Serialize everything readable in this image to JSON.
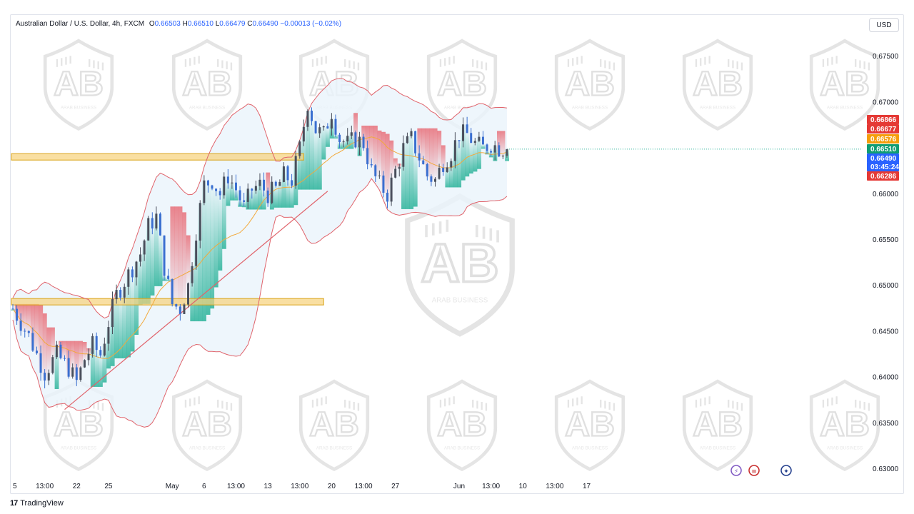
{
  "legend": {
    "symbol": "Australian Dollar / U.S. Dollar, 4h, FXCM",
    "open_label": "O",
    "open": "0.66503",
    "high_label": "H",
    "high": "0.66510",
    "low_label": "L",
    "low": "0.66479",
    "close_label": "C",
    "close": "0.66490",
    "change": "−0.00013 (−0.02%)"
  },
  "currency": "USD",
  "brand": "TradingView",
  "watermark_text": "ARAB BUSINESS",
  "colors": {
    "candle_up": "#4a4f5c",
    "candle_down": "#3a6fd0",
    "bollinger": "#e0636b",
    "ma": "#f2a93b",
    "trendline": "#e0636b",
    "zone_fill": "#f7d27a",
    "zone_border": "#d9a41a",
    "cloud_green": "#2bb39a",
    "cloud_red": "#e8707a",
    "band_fill": "#eaf4fb"
  },
  "price_tags": [
    {
      "value": "0.66866",
      "color": "#e53935"
    },
    {
      "value": "0.66677",
      "color": "#e53935"
    },
    {
      "value": "0.66576",
      "color": "#f59e0b"
    },
    {
      "value": "0.66510",
      "color": "#0f9d73"
    },
    {
      "value": "0.66490",
      "color": "#2962ff"
    },
    {
      "value": "03:45:24",
      "color": "#2962ff"
    },
    {
      "value": "0.66286",
      "color": "#e53935"
    }
  ],
  "event_icons": [
    "lightning-icon",
    "us-flag-icon",
    "au-flag-icon"
  ],
  "chart_data": {
    "type": "candlestick",
    "timeframe": "4h",
    "y_ticks": [
      "0.67500",
      "0.67000",
      "0.66500",
      "0.66000",
      "0.65500",
      "0.65000",
      "0.64500",
      "0.64000",
      "0.63500",
      "0.63000"
    ],
    "y_tick_values": [
      0.675,
      0.67,
      0.665,
      0.66,
      0.655,
      0.65,
      0.645,
      0.64,
      0.635,
      0.63
    ],
    "ylim": [
      0.62915,
      0.6796
    ],
    "x_ticks": [
      "5",
      "13:00",
      "22",
      "25",
      "May",
      "6",
      "13:00",
      "13",
      "13:00",
      "20",
      "13:00",
      "27",
      "Jun",
      "13:00",
      "10",
      "13:00",
      "17"
    ],
    "x_tick_index": [
      0,
      8,
      16,
      24,
      40,
      48,
      56,
      64,
      72,
      80,
      88,
      96,
      112,
      120,
      128,
      136,
      144
    ],
    "close_path_points": [
      [
        0,
        0.6475
      ],
      [
        4,
        0.6445
      ],
      [
        8,
        0.6405
      ],
      [
        11,
        0.6425
      ],
      [
        14,
        0.641
      ],
      [
        16,
        0.6395
      ],
      [
        18,
        0.642
      ],
      [
        20,
        0.6435
      ],
      [
        22,
        0.6425
      ],
      [
        24,
        0.646
      ],
      [
        26,
        0.649
      ],
      [
        28,
        0.6505
      ],
      [
        30,
        0.652
      ],
      [
        32,
        0.6535
      ],
      [
        34,
        0.6565
      ],
      [
        36,
        0.6575
      ],
      [
        38,
        0.652
      ],
      [
        40,
        0.648
      ],
      [
        42,
        0.6475
      ],
      [
        44,
        0.65
      ],
      [
        46,
        0.656
      ],
      [
        48,
        0.661
      ],
      [
        50,
        0.6615
      ],
      [
        52,
        0.66
      ],
      [
        54,
        0.662
      ],
      [
        56,
        0.6605
      ],
      [
        58,
        0.6585
      ],
      [
        60,
        0.6605
      ],
      [
        62,
        0.661
      ],
      [
        64,
        0.66
      ],
      [
        66,
        0.6605
      ],
      [
        68,
        0.662
      ],
      [
        70,
        0.6615
      ],
      [
        72,
        0.665
      ],
      [
        74,
        0.67
      ],
      [
        76,
        0.667
      ],
      [
        78,
        0.6665
      ],
      [
        80,
        0.669
      ],
      [
        82,
        0.666
      ],
      [
        84,
        0.6655
      ],
      [
        86,
        0.666
      ],
      [
        88,
        0.6655
      ],
      [
        90,
        0.6625
      ],
      [
        92,
        0.661
      ],
      [
        94,
        0.66
      ],
      [
        96,
        0.6625
      ],
      [
        98,
        0.665
      ],
      [
        100,
        0.666
      ],
      [
        102,
        0.664
      ],
      [
        104,
        0.662
      ],
      [
        106,
        0.6615
      ],
      [
        108,
        0.6635
      ],
      [
        110,
        0.6645
      ],
      [
        112,
        0.6665
      ],
      [
        114,
        0.6665
      ],
      [
        116,
        0.6655
      ],
      [
        118,
        0.665
      ],
      [
        120,
        0.6655
      ],
      [
        122,
        0.665
      ],
      [
        124,
        0.6649
      ]
    ],
    "horizontal_zones": [
      {
        "price_low": 0.6637,
        "price_high": 0.6644,
        "from_index": 0,
        "to_index": 73
      },
      {
        "price_low": 0.6479,
        "price_high": 0.6486,
        "from_index": 0,
        "to_index": 78
      }
    ],
    "trendline": {
      "from": [
        13,
        0.6365
      ],
      "to": [
        79,
        0.6603
      ]
    },
    "current_price": 0.6649
  }
}
